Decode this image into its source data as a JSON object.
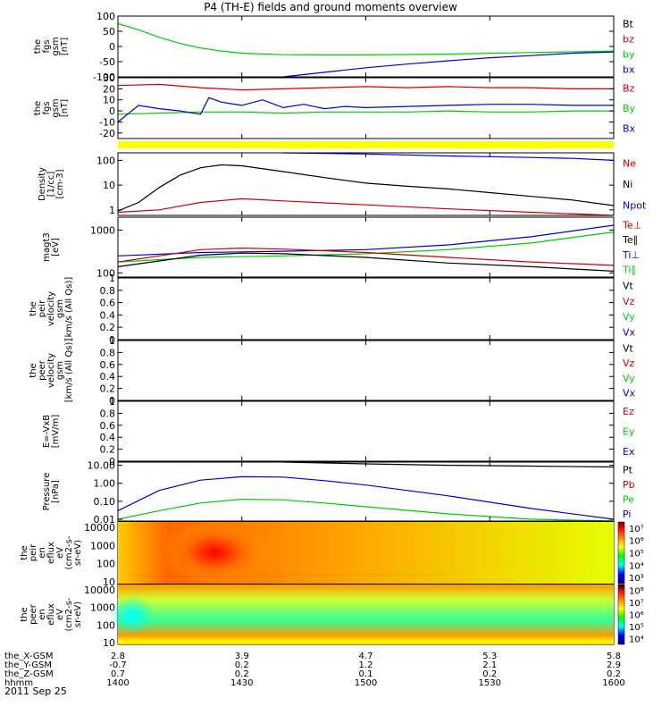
{
  "title": "P4 (TH-E) fields and ground moments overview",
  "date_label": "2011 Sep 25",
  "colors": {
    "black": "#000000",
    "red": "#cc0000",
    "green": "#00cc00",
    "blue": "#0000cc",
    "yellow": "#ffff00"
  },
  "chart_data": [
    {
      "type": "line",
      "ylabel_lines": [
        "the",
        "fgs",
        "gsm",
        "[nT]"
      ],
      "ylim": [
        -100,
        100
      ],
      "yticks": [
        100,
        50,
        0,
        -50,
        -100
      ],
      "ylog": false,
      "legend": [
        {
          "label": "Bt",
          "color": "#000000"
        },
        {
          "label": "bz",
          "color": "#cc0000"
        },
        {
          "label": "by",
          "color": "#00cc00"
        },
        {
          "label": "bx",
          "color": "#0000cc"
        }
      ],
      "series": [
        {
          "name": "by",
          "color": "#00cc00",
          "x": [
            0,
            5,
            10,
            15,
            20,
            25,
            30,
            40,
            50,
            60,
            80,
            100,
            120
          ],
          "y": [
            75,
            55,
            30,
            10,
            -5,
            -15,
            -22,
            -27,
            -28,
            -28,
            -25,
            -20,
            -15
          ]
        },
        {
          "name": "bx",
          "color": "#0000cc",
          "x": [
            40,
            50,
            60,
            70,
            80,
            90,
            100,
            110,
            120
          ],
          "y": [
            -100,
            -85,
            -70,
            -58,
            -47,
            -37,
            -30,
            -22,
            -18
          ]
        }
      ]
    },
    {
      "type": "line",
      "ylabel_lines": [
        "the",
        "fgs",
        "gsm",
        "[nT]"
      ],
      "ylim": [
        -25,
        30
      ],
      "yticks": [
        30,
        20,
        10,
        0,
        -10,
        -20
      ],
      "ylog": false,
      "legend": [
        {
          "label": "Bz",
          "color": "#cc0000"
        },
        {
          "label": "By",
          "color": "#00cc00"
        },
        {
          "label": "Bx",
          "color": "#0000cc"
        }
      ],
      "series": [
        {
          "name": "Bz",
          "color": "#cc0000",
          "x": [
            0,
            10,
            20,
            30,
            40,
            50,
            60,
            70,
            80,
            90,
            100,
            110,
            120
          ],
          "y": [
            23,
            24,
            21,
            19,
            20,
            21,
            22,
            21,
            22,
            21,
            21,
            20,
            20
          ]
        },
        {
          "name": "By",
          "color": "#00cc00",
          "x": [
            0,
            10,
            20,
            30,
            40,
            50,
            60,
            70,
            80,
            90,
            100,
            110,
            120
          ],
          "y": [
            -3,
            -2,
            -1,
            -1,
            -2,
            -1,
            -1,
            -1,
            0,
            -1,
            -1,
            0,
            0
          ]
        },
        {
          "name": "Bx",
          "color": "#0000cc",
          "x": [
            0,
            5,
            10,
            15,
            20,
            22,
            25,
            30,
            35,
            40,
            45,
            50,
            55,
            60,
            70,
            80,
            90,
            100,
            110,
            120
          ],
          "y": [
            -10,
            5,
            2,
            0,
            -3,
            12,
            8,
            5,
            10,
            3,
            6,
            2,
            4,
            3,
            4,
            5,
            6,
            6,
            5,
            5
          ]
        }
      ]
    },
    {
      "type": "line",
      "ylabel_lines": [
        "Density",
        "[1/cc]",
        "[cm-3]"
      ],
      "ylim": [
        0.6,
        200
      ],
      "yticks": [
        100,
        10,
        1
      ],
      "ytick_labels": [
        "100",
        "10",
        "1"
      ],
      "ylog": true,
      "legend": [
        {
          "label": "Ne",
          "color": "#cc0000"
        },
        {
          "label": "Ni",
          "color": "#000000"
        },
        {
          "label": "Npot",
          "color": "#0000cc"
        }
      ],
      "series": [
        {
          "name": "Ni",
          "color": "#000000",
          "x": [
            0,
            5,
            10,
            15,
            20,
            25,
            30,
            40,
            50,
            60,
            70,
            80,
            90,
            100,
            110,
            120
          ],
          "y": [
            0.9,
            2,
            8,
            25,
            50,
            65,
            60,
            35,
            20,
            12,
            9,
            7,
            5,
            3.5,
            2.5,
            1.5
          ]
        },
        {
          "name": "Ne",
          "color": "#cc0000",
          "x": [
            0,
            10,
            20,
            30,
            40,
            60,
            80,
            100,
            120
          ],
          "y": [
            0.8,
            1,
            2,
            2.8,
            2.3,
            1.6,
            1.1,
            0.8,
            0.6
          ]
        },
        {
          "name": "Npot",
          "color": "#0000cc",
          "x": [
            40,
            60,
            80,
            90,
            100,
            110,
            120
          ],
          "y": [
            200,
            180,
            150,
            140,
            130,
            120,
            100
          ]
        }
      ]
    },
    {
      "type": "line",
      "ylabel_lines": [
        "magt3",
        "[eV]"
      ],
      "ylim": [
        80,
        2000
      ],
      "yticks": [
        1000,
        100
      ],
      "ytick_labels": [
        "1000",
        "100"
      ],
      "ylog": true,
      "legend": [
        {
          "label": "Te⊥",
          "color": "#cc0000"
        },
        {
          "label": "Te∥",
          "color": "#000000"
        },
        {
          "label": "Ti⊥",
          "color": "#0000cc"
        },
        {
          "label": "Ti∥",
          "color": "#00cc00"
        }
      ],
      "series": [
        {
          "name": "Ti⊥",
          "color": "#0000cc",
          "x": [
            0,
            20,
            40,
            60,
            80,
            100,
            120
          ],
          "y": [
            250,
            300,
            320,
            350,
            450,
            700,
            1300
          ]
        },
        {
          "name": "Ti∥",
          "color": "#00cc00",
          "x": [
            0,
            20,
            40,
            60,
            80,
            100,
            120
          ],
          "y": [
            180,
            230,
            250,
            280,
            350,
            500,
            900
          ]
        },
        {
          "name": "Te⊥",
          "color": "#cc0000",
          "x": [
            0,
            10,
            20,
            30,
            40,
            60,
            80,
            100,
            120
          ],
          "y": [
            180,
            250,
            350,
            380,
            360,
            300,
            230,
            180,
            150
          ]
        },
        {
          "name": "Te∥",
          "color": "#000000",
          "x": [
            0,
            10,
            20,
            30,
            40,
            60,
            80,
            100,
            120
          ],
          "y": [
            140,
            190,
            260,
            290,
            280,
            230,
            170,
            140,
            110
          ]
        }
      ]
    },
    {
      "type": "line",
      "ylabel_lines": [
        "the",
        "peir",
        "velocity",
        "gsm",
        "[km/s (All Qs)]"
      ],
      "ylim": [
        0,
        1.0
      ],
      "yticks": [
        1.0,
        0.8,
        0.6,
        0.4,
        0.2,
        0.0
      ],
      "ylog": false,
      "legend": [
        {
          "label": "Vt",
          "color": "#000000"
        },
        {
          "label": "Vz",
          "color": "#cc0000"
        },
        {
          "label": "Vy",
          "color": "#00cc00"
        },
        {
          "label": "Vx",
          "color": "#0000cc"
        }
      ],
      "series": []
    },
    {
      "type": "line",
      "ylabel_lines": [
        "the",
        "peer",
        "velocity",
        "gsm",
        "[km/s (All Qs)]"
      ],
      "ylim": [
        0,
        1.0
      ],
      "yticks": [
        1.0,
        0.8,
        0.6,
        0.4,
        0.2,
        0.0
      ],
      "ylog": false,
      "legend": [
        {
          "label": "Vt",
          "color": "#000000"
        },
        {
          "label": "Vz",
          "color": "#cc0000"
        },
        {
          "label": "Vy",
          "color": "#00cc00"
        },
        {
          "label": "Vx",
          "color": "#0000cc"
        }
      ],
      "series": []
    },
    {
      "type": "line",
      "ylabel_lines": [
        "E=-VxB",
        "[mV/m]"
      ],
      "ylim": [
        0,
        1.0
      ],
      "yticks": [
        1.0,
        0.8,
        0.6,
        0.4,
        0.2,
        0.0
      ],
      "ylog": false,
      "legend": [
        {
          "label": "Ez",
          "color": "#cc0000"
        },
        {
          "label": "Ey",
          "color": "#00cc00"
        },
        {
          "label": "Ex",
          "color": "#0000cc"
        }
      ],
      "series": []
    },
    {
      "type": "line",
      "ylabel_lines": [
        "Pressure",
        "[nPa]"
      ],
      "ylim": [
        0.008,
        15
      ],
      "yticks": [
        10,
        1,
        0.1,
        0.01
      ],
      "ytick_labels": [
        "10.00",
        "1.00",
        "0.10",
        "0.01"
      ],
      "ylog": true,
      "legend": [
        {
          "label": "Pt",
          "color": "#000000"
        },
        {
          "label": "Pb",
          "color": "#cc0000"
        },
        {
          "label": "Pe",
          "color": "#00cc00"
        },
        {
          "label": "Pi",
          "color": "#0000cc"
        }
      ],
      "series": [
        {
          "name": "Pi",
          "color": "#0000cc",
          "x": [
            0,
            10,
            20,
            30,
            40,
            50,
            60,
            80,
            100,
            120
          ],
          "y": [
            0.03,
            0.4,
            1.5,
            2.3,
            2.2,
            1.4,
            0.8,
            0.2,
            0.04,
            0.01
          ]
        },
        {
          "name": "Pe",
          "color": "#00cc00",
          "x": [
            0,
            10,
            20,
            30,
            40,
            50,
            60,
            80,
            100,
            120
          ],
          "y": [
            0.01,
            0.03,
            0.08,
            0.13,
            0.12,
            0.08,
            0.05,
            0.02,
            0.01,
            0.008
          ]
        },
        {
          "name": "Pt",
          "color": "#000000",
          "x": [
            40,
            60,
            80,
            100,
            120
          ],
          "y": [
            15,
            12,
            10,
            9,
            8
          ]
        }
      ]
    },
    {
      "type": "heatmap",
      "ylabel_lines": [
        "the",
        "peir",
        "en",
        "eflux",
        "eV",
        "(cm2-s-",
        "sr-eV)"
      ],
      "ylim": [
        8,
        20000
      ],
      "yticks": [
        10000,
        1000,
        100,
        10
      ],
      "ytick_labels": [
        "10000",
        "1000",
        "100",
        "10"
      ],
      "ylog": true,
      "colorbar": {
        "ticks": [
          "10⁷",
          "10⁶",
          "10⁵",
          "10⁴",
          "10³"
        ]
      }
    },
    {
      "type": "heatmap",
      "ylabel_lines": [
        "the",
        "peer",
        "en",
        "eflux",
        "eV",
        "(cm2-s-",
        "sr-eV)"
      ],
      "ylim": [
        8,
        20000
      ],
      "yticks": [
        10000,
        1000,
        100,
        10
      ],
      "ytick_labels": [
        "10000",
        "1000",
        "100",
        "10"
      ],
      "ylog": true,
      "colorbar": {
        "ticks": [
          "10⁸",
          "10⁷",
          "10⁶",
          "10⁵",
          "10⁴"
        ]
      }
    }
  ],
  "x_axis": {
    "range_minutes": [
      0,
      120
    ],
    "ticks_minutes": [
      0,
      30,
      60,
      90,
      120
    ],
    "rows": [
      {
        "label": "the_X-GSM",
        "values": [
          "2.8",
          "3.9",
          "4.7",
          "5.3",
          "5.8"
        ]
      },
      {
        "label": "the_Y-GSM",
        "values": [
          "-0.7",
          "0.2",
          "1.2",
          "2.1",
          "2.9"
        ]
      },
      {
        "label": "the_Z-GSM",
        "values": [
          "0.7",
          "0.2",
          "0.1",
          "0.2",
          "0.2"
        ]
      },
      {
        "label": "hhmm",
        "values": [
          "1400",
          "1430",
          "1500",
          "1530",
          "1600"
        ]
      }
    ]
  }
}
